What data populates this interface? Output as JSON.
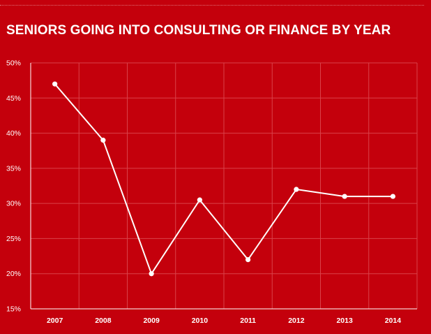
{
  "chart_data": {
    "type": "line",
    "title": "SENIORS GOING INTO CONSULTING OR FINANCE BY YEAR",
    "xlabel": "",
    "ylabel": "",
    "categories": [
      "2007",
      "2008",
      "2009",
      "2010",
      "2011",
      "2012",
      "2013",
      "2014"
    ],
    "series": [
      {
        "values": [
          47,
          39,
          20,
          30.5,
          22,
          32,
          31,
          31
        ]
      }
    ],
    "ylim": [
      15,
      50
    ],
    "yticks": [
      15,
      20,
      25,
      30,
      35,
      40,
      45,
      50
    ],
    "ytick_labels": [
      "15%",
      "20%",
      "25%",
      "30%",
      "35%",
      "40%",
      "45%",
      "50%"
    ],
    "grid": true,
    "legend": "none",
    "colors": {
      "background": "#c4000c",
      "line": "#ffffff",
      "grid": "#d9424a",
      "text": "#ffffff"
    }
  }
}
